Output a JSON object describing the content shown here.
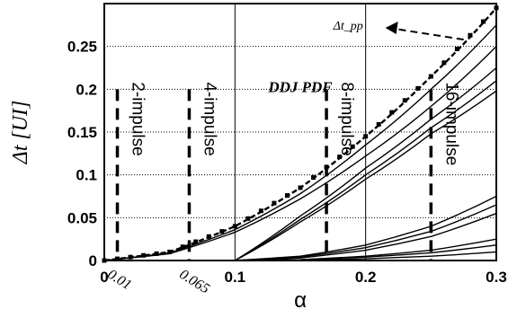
{
  "chart_data": {
    "type": "line",
    "title": "DDJ PDF",
    "xlabel": "α",
    "ylabel": "Δt [UI]",
    "xlim": [
      0,
      0.3
    ],
    "ylim": [
      0,
      0.3
    ],
    "x_ticks": [
      "0",
      "0.1",
      "0.2",
      "0.3"
    ],
    "x_extra_ticks": [
      "0.01",
      "0.065"
    ],
    "y_ticks": [
      "0",
      "0.05",
      "0.1",
      "0.15",
      "0.2",
      "0.25"
    ],
    "grid": true,
    "vertical_markers": [
      {
        "x": 0.01,
        "label": "2-impulse"
      },
      {
        "x": 0.065,
        "label": "4-impulse"
      },
      {
        "x": 0.17,
        "label": "8-impulse"
      },
      {
        "x": 0.25,
        "label": "16-impulse"
      }
    ],
    "annotation": {
      "label": "Δt_pp",
      "at": [
        0.275,
        0.258
      ]
    },
    "series": [
      {
        "values": [
          [
            0,
            0
          ],
          [
            0.05,
            0.01
          ],
          [
            0.1,
            0.04
          ],
          [
            0.15,
            0.085
          ],
          [
            0.2,
            0.145
          ],
          [
            0.25,
            0.215
          ],
          [
            0.3,
            0.295
          ]
        ],
        "marker": "square",
        "dashed": true
      },
      {
        "values": [
          [
            0,
            0
          ],
          [
            0.05,
            0.009
          ],
          [
            0.1,
            0.036
          ],
          [
            0.15,
            0.078
          ],
          [
            0.2,
            0.135
          ],
          [
            0.25,
            0.2
          ],
          [
            0.3,
            0.275
          ]
        ]
      },
      {
        "values": [
          [
            0,
            0
          ],
          [
            0.05,
            0.008
          ],
          [
            0.1,
            0.033
          ],
          [
            0.15,
            0.072
          ],
          [
            0.2,
            0.122
          ],
          [
            0.25,
            0.18
          ],
          [
            0.3,
            0.25
          ]
        ]
      },
      {
        "values": [
          [
            0.1,
            0
          ],
          [
            0.15,
            0.052
          ],
          [
            0.2,
            0.108
          ],
          [
            0.25,
            0.165
          ],
          [
            0.3,
            0.225
          ]
        ]
      },
      {
        "values": [
          [
            0.1,
            0
          ],
          [
            0.15,
            0.048
          ],
          [
            0.2,
            0.1
          ],
          [
            0.25,
            0.155
          ],
          [
            0.3,
            0.21
          ]
        ]
      },
      {
        "values": [
          [
            0.1,
            0
          ],
          [
            0.15,
            0.045
          ],
          [
            0.2,
            0.095
          ],
          [
            0.25,
            0.148
          ],
          [
            0.3,
            0.198
          ]
        ]
      },
      {
        "values": [
          [
            0.1,
            0
          ],
          [
            0.15,
            0.005
          ],
          [
            0.2,
            0.018
          ],
          [
            0.25,
            0.04
          ],
          [
            0.3,
            0.075
          ]
        ]
      },
      {
        "values": [
          [
            0.1,
            0
          ],
          [
            0.15,
            0.004
          ],
          [
            0.2,
            0.015
          ],
          [
            0.25,
            0.034
          ],
          [
            0.3,
            0.065
          ]
        ]
      },
      {
        "values": [
          [
            0.1,
            0
          ],
          [
            0.15,
            0.003
          ],
          [
            0.2,
            0.012
          ],
          [
            0.25,
            0.028
          ],
          [
            0.3,
            0.055
          ]
        ]
      },
      {
        "values": [
          [
            0.1,
            0
          ],
          [
            0.15,
            0.001
          ],
          [
            0.2,
            0.005
          ],
          [
            0.25,
            0.012
          ],
          [
            0.3,
            0.025
          ]
        ]
      },
      {
        "values": [
          [
            0.1,
            0
          ],
          [
            0.15,
            0.001
          ],
          [
            0.2,
            0.004
          ],
          [
            0.25,
            0.009
          ],
          [
            0.3,
            0.018
          ]
        ]
      },
      {
        "values": [
          [
            0.1,
            0
          ],
          [
            0.15,
            0.0005
          ],
          [
            0.2,
            0.002
          ],
          [
            0.25,
            0.005
          ],
          [
            0.3,
            0.01
          ]
        ]
      }
    ]
  }
}
